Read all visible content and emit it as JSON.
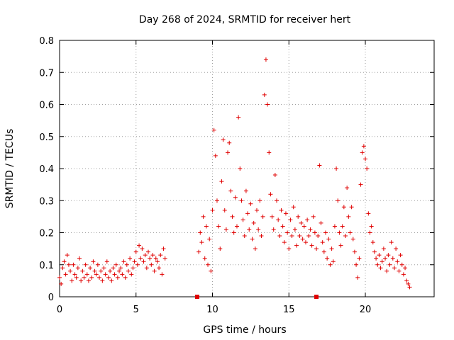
{
  "chart_data": {
    "type": "scatter",
    "title": "Day 268 of 2024, SRMTID for receiver hert",
    "xlabel": "GPS time / hours",
    "ylabel": "SRMTID / TECUs",
    "xlim": [
      0,
      24.5
    ],
    "ylim": [
      0,
      0.8
    ],
    "xticks": [
      0,
      5,
      10,
      15,
      20
    ],
    "yticks": [
      0,
      0.1,
      0.2,
      0.3,
      0.4,
      0.5,
      0.6,
      0.7,
      0.8
    ],
    "xtick_labels": [
      "0",
      "5",
      "10",
      "15",
      "20"
    ],
    "ytick_labels": [
      "0",
      "0.1",
      "0.2",
      "0.3",
      "0.4",
      "0.5",
      "0.6",
      "0.7",
      "0.8"
    ],
    "grid": true,
    "marker": "+",
    "color": "#e00000",
    "series": [
      {
        "name": "SRMTID",
        "points": [
          [
            0.0,
            0.06
          ],
          [
            0.1,
            0.04
          ],
          [
            0.2,
            0.09
          ],
          [
            0.3,
            0.11
          ],
          [
            0.4,
            0.07
          ],
          [
            0.5,
            0.13
          ],
          [
            0.6,
            0.1
          ],
          [
            0.7,
            0.08
          ],
          [
            0.8,
            0.05
          ],
          [
            0.9,
            0.1
          ],
          [
            1.0,
            0.07
          ],
          [
            1.1,
            0.06
          ],
          [
            1.2,
            0.09
          ],
          [
            1.3,
            0.12
          ],
          [
            1.4,
            0.05
          ],
          [
            1.5,
            0.08
          ],
          [
            1.6,
            0.06
          ],
          [
            1.7,
            0.1
          ],
          [
            1.8,
            0.07
          ],
          [
            1.9,
            0.05
          ],
          [
            2.0,
            0.09
          ],
          [
            2.1,
            0.06
          ],
          [
            2.2,
            0.11
          ],
          [
            2.3,
            0.08
          ],
          [
            2.4,
            0.07
          ],
          [
            2.5,
            0.1
          ],
          [
            2.6,
            0.06
          ],
          [
            2.7,
            0.08
          ],
          [
            2.8,
            0.05
          ],
          [
            2.9,
            0.09
          ],
          [
            3.0,
            0.07
          ],
          [
            3.1,
            0.11
          ],
          [
            3.2,
            0.06
          ],
          [
            3.3,
            0.08
          ],
          [
            3.4,
            0.05
          ],
          [
            3.5,
            0.09
          ],
          [
            3.6,
            0.07
          ],
          [
            3.7,
            0.1
          ],
          [
            3.8,
            0.06
          ],
          [
            3.9,
            0.08
          ],
          [
            4.0,
            0.09
          ],
          [
            4.1,
            0.07
          ],
          [
            4.2,
            0.11
          ],
          [
            4.3,
            0.06
          ],
          [
            4.4,
            0.1
          ],
          [
            4.5,
            0.08
          ],
          [
            4.6,
            0.12
          ],
          [
            4.7,
            0.07
          ],
          [
            4.8,
            0.09
          ],
          [
            4.9,
            0.11
          ],
          [
            5.0,
            0.14
          ],
          [
            5.1,
            0.1
          ],
          [
            5.2,
            0.16
          ],
          [
            5.3,
            0.12
          ],
          [
            5.4,
            0.15
          ],
          [
            5.5,
            0.11
          ],
          [
            5.6,
            0.13
          ],
          [
            5.7,
            0.09
          ],
          [
            5.8,
            0.14
          ],
          [
            5.9,
            0.12
          ],
          [
            6.0,
            0.1
          ],
          [
            6.1,
            0.13
          ],
          [
            6.2,
            0.08
          ],
          [
            6.3,
            0.12
          ],
          [
            6.4,
            0.11
          ],
          [
            6.5,
            0.09
          ],
          [
            6.6,
            0.13
          ],
          [
            6.7,
            0.07
          ],
          [
            6.8,
            0.15
          ],
          [
            6.9,
            0.12
          ],
          [
            9.1,
            0.14
          ],
          [
            9.2,
            0.2
          ],
          [
            9.3,
            0.17
          ],
          [
            9.4,
            0.25
          ],
          [
            9.5,
            0.12
          ],
          [
            9.6,
            0.22
          ],
          [
            9.7,
            0.1
          ],
          [
            9.8,
            0.18
          ],
          [
            9.9,
            0.08
          ],
          [
            10.0,
            0.27
          ],
          [
            10.1,
            0.52
          ],
          [
            10.2,
            0.44
          ],
          [
            10.3,
            0.3
          ],
          [
            10.4,
            0.22
          ],
          [
            10.5,
            0.15
          ],
          [
            10.6,
            0.36
          ],
          [
            10.7,
            0.49
          ],
          [
            10.8,
            0.27
          ],
          [
            10.9,
            0.21
          ],
          [
            11.0,
            0.45
          ],
          [
            11.1,
            0.48
          ],
          [
            11.2,
            0.33
          ],
          [
            11.3,
            0.25
          ],
          [
            11.4,
            0.2
          ],
          [
            11.5,
            0.31
          ],
          [
            11.6,
            0.22
          ],
          [
            11.7,
            0.56
          ],
          [
            11.8,
            0.4
          ],
          [
            11.9,
            0.3
          ],
          [
            12.0,
            0.24
          ],
          [
            12.1,
            0.19
          ],
          [
            12.2,
            0.33
          ],
          [
            12.3,
            0.26
          ],
          [
            12.4,
            0.21
          ],
          [
            12.5,
            0.29
          ],
          [
            12.6,
            0.18
          ],
          [
            12.7,
            0.23
          ],
          [
            12.8,
            0.15
          ],
          [
            12.9,
            0.27
          ],
          [
            13.0,
            0.21
          ],
          [
            13.1,
            0.3
          ],
          [
            13.2,
            0.19
          ],
          [
            13.3,
            0.25
          ],
          [
            13.4,
            0.63
          ],
          [
            13.5,
            0.74
          ],
          [
            13.6,
            0.6
          ],
          [
            13.7,
            0.45
          ],
          [
            13.8,
            0.32
          ],
          [
            13.9,
            0.25
          ],
          [
            14.0,
            0.21
          ],
          [
            14.1,
            0.38
          ],
          [
            14.2,
            0.3
          ],
          [
            14.3,
            0.24
          ],
          [
            14.4,
            0.19
          ],
          [
            14.5,
            0.27
          ],
          [
            14.6,
            0.22
          ],
          [
            14.7,
            0.17
          ],
          [
            14.8,
            0.26
          ],
          [
            14.9,
            0.2
          ],
          [
            15.0,
            0.15
          ],
          [
            15.1,
            0.24
          ],
          [
            15.2,
            0.19
          ],
          [
            15.3,
            0.28
          ],
          [
            15.4,
            0.21
          ],
          [
            15.5,
            0.16
          ],
          [
            15.6,
            0.25
          ],
          [
            15.7,
            0.19
          ],
          [
            15.8,
            0.23
          ],
          [
            15.9,
            0.18
          ],
          [
            16.0,
            0.22
          ],
          [
            16.1,
            0.17
          ],
          [
            16.2,
            0.24
          ],
          [
            16.3,
            0.19
          ],
          [
            16.4,
            0.21
          ],
          [
            16.5,
            0.16
          ],
          [
            16.6,
            0.25
          ],
          [
            16.7,
            0.2
          ],
          [
            16.8,
            0.15
          ],
          [
            16.9,
            0.19
          ],
          [
            17.0,
            0.41
          ],
          [
            17.1,
            0.23
          ],
          [
            17.2,
            0.17
          ],
          [
            17.3,
            0.14
          ],
          [
            17.4,
            0.2
          ],
          [
            17.5,
            0.12
          ],
          [
            17.6,
            0.18
          ],
          [
            17.7,
            0.1
          ],
          [
            17.8,
            0.15
          ],
          [
            17.9,
            0.11
          ],
          [
            18.0,
            0.22
          ],
          [
            18.1,
            0.4
          ],
          [
            18.2,
            0.3
          ],
          [
            18.3,
            0.2
          ],
          [
            18.4,
            0.16
          ],
          [
            18.5,
            0.22
          ],
          [
            18.6,
            0.28
          ],
          [
            18.7,
            0.19
          ],
          [
            18.8,
            0.34
          ],
          [
            18.9,
            0.25
          ],
          [
            19.0,
            0.2
          ],
          [
            19.1,
            0.28
          ],
          [
            19.2,
            0.18
          ],
          [
            19.3,
            0.14
          ],
          [
            19.4,
            0.1
          ],
          [
            19.5,
            0.06
          ],
          [
            19.6,
            0.12
          ],
          [
            19.7,
            0.35
          ],
          [
            19.8,
            0.45
          ],
          [
            19.9,
            0.47
          ],
          [
            20.0,
            0.43
          ],
          [
            20.1,
            0.4
          ],
          [
            20.2,
            0.26
          ],
          [
            20.3,
            0.2
          ],
          [
            20.4,
            0.22
          ],
          [
            20.5,
            0.17
          ],
          [
            20.6,
            0.14
          ],
          [
            20.7,
            0.12
          ],
          [
            20.8,
            0.1
          ],
          [
            20.9,
            0.13
          ],
          [
            21.0,
            0.09
          ],
          [
            21.1,
            0.11
          ],
          [
            21.2,
            0.15
          ],
          [
            21.3,
            0.12
          ],
          [
            21.4,
            0.08
          ],
          [
            21.5,
            0.13
          ],
          [
            21.6,
            0.1
          ],
          [
            21.7,
            0.17
          ],
          [
            21.8,
            0.12
          ],
          [
            21.9,
            0.09
          ],
          [
            22.0,
            0.15
          ],
          [
            22.1,
            0.11
          ],
          [
            22.2,
            0.08
          ],
          [
            22.3,
            0.13
          ],
          [
            22.4,
            0.1
          ],
          [
            22.5,
            0.07
          ],
          [
            22.6,
            0.09
          ],
          [
            22.7,
            0.05
          ],
          [
            22.8,
            0.04
          ],
          [
            22.9,
            0.03
          ]
        ]
      }
    ],
    "markers_on_axis": [
      9.0,
      16.8
    ]
  }
}
